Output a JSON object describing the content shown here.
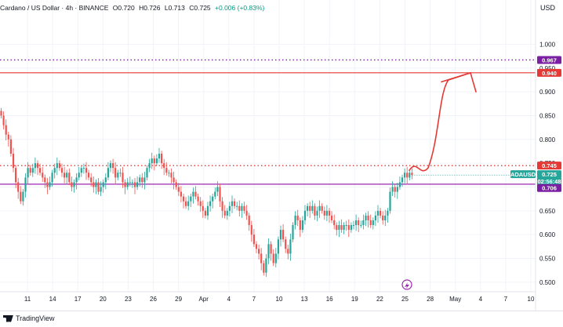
{
  "header": {
    "symbol": "Cardano / US Dollar · 4h · BINANCE",
    "o": "O0.720",
    "h": "H0.726",
    "l": "L0.713",
    "c": "C0.725",
    "change": "+0.006 (+0.83%)"
  },
  "currency": "USD",
  "price_axis": {
    "ticks": [
      "1.000",
      "0.950",
      "0.900",
      "0.850",
      "0.800",
      "0.750",
      "0.700",
      "0.650",
      "0.600",
      "0.550",
      "0.500"
    ],
    "badges": [
      {
        "label": "0.967",
        "bg": "#7b1fa2",
        "color": "#ffffff"
      },
      {
        "label": "0.940",
        "bg": "#e53935",
        "color": "#ffffff"
      },
      {
        "label": "0.745",
        "bg": "#e53935",
        "color": "#ffffff"
      },
      {
        "label": "ADAUSD",
        "bg": "#26a69a",
        "color": "#ffffff"
      },
      {
        "label": "0.725",
        "bg": "#26a69a",
        "color": "#ffffff"
      },
      {
        "label": "02:56:48",
        "bg": "#26a69a",
        "color": "#ffffff"
      },
      {
        "label": "0.706",
        "bg": "#7b1fa2",
        "color": "#ffffff"
      }
    ]
  },
  "time_axis": {
    "labels": [
      "11",
      "14",
      "17",
      "20",
      "23",
      "26",
      "29",
      "Apr",
      "4",
      "7",
      "10",
      "13",
      "16",
      "19",
      "22",
      "25",
      "28",
      "May",
      "4",
      "7",
      "10"
    ]
  },
  "levels": [
    {
      "price": 0.967,
      "style": "dotted",
      "color": "#7b1fa2"
    },
    {
      "price": 0.94,
      "style": "solid",
      "color": "#e53935"
    },
    {
      "price": 0.745,
      "style": "dotted",
      "color": "#e53935"
    },
    {
      "price": 0.706,
      "style": "solid",
      "color": "#9c27b0"
    }
  ],
  "colors": {
    "up": "#26a69a",
    "down": "#ef5350",
    "grid": "#f0f3fa"
  },
  "footer": {
    "brand": "TradingView"
  },
  "chart_data": {
    "type": "candlestick",
    "symbol": "ADAUSD",
    "timeframe": "4h",
    "ylim": [
      0.48,
      1.06
    ],
    "closes": [
      0.85,
      0.83,
      0.81,
      0.8,
      0.77,
      0.74,
      0.71,
      0.69,
      0.67,
      0.69,
      0.72,
      0.74,
      0.73,
      0.74,
      0.75,
      0.74,
      0.73,
      0.72,
      0.71,
      0.7,
      0.71,
      0.73,
      0.74,
      0.75,
      0.74,
      0.73,
      0.72,
      0.73,
      0.71,
      0.7,
      0.71,
      0.72,
      0.73,
      0.74,
      0.74,
      0.73,
      0.72,
      0.71,
      0.7,
      0.71,
      0.69,
      0.7,
      0.71,
      0.72,
      0.74,
      0.75,
      0.74,
      0.72,
      0.73,
      0.73,
      0.71,
      0.7,
      0.71,
      0.71,
      0.71,
      0.7,
      0.71,
      0.72,
      0.71,
      0.72,
      0.74,
      0.75,
      0.76,
      0.75,
      0.76,
      0.77,
      0.75,
      0.74,
      0.73,
      0.73,
      0.72,
      0.71,
      0.7,
      0.69,
      0.68,
      0.67,
      0.66,
      0.67,
      0.68,
      0.69,
      0.68,
      0.67,
      0.66,
      0.65,
      0.64,
      0.66,
      0.67,
      0.68,
      0.69,
      0.7,
      0.67,
      0.65,
      0.64,
      0.65,
      0.66,
      0.67,
      0.66,
      0.66,
      0.65,
      0.66,
      0.65,
      0.64,
      0.62,
      0.6,
      0.58,
      0.57,
      0.56,
      0.54,
      0.52,
      0.55,
      0.58,
      0.56,
      0.54,
      0.56,
      0.59,
      0.61,
      0.59,
      0.57,
      0.56,
      0.59,
      0.62,
      0.64,
      0.63,
      0.61,
      0.63,
      0.65,
      0.66,
      0.65,
      0.66,
      0.64,
      0.65,
      0.66,
      0.65,
      0.64,
      0.65,
      0.64,
      0.63,
      0.62,
      0.61,
      0.62,
      0.61,
      0.62,
      0.62,
      0.61,
      0.62,
      0.62,
      0.63,
      0.62,
      0.62,
      0.63,
      0.64,
      0.63,
      0.62,
      0.63,
      0.64,
      0.65,
      0.64,
      0.63,
      0.64,
      0.65,
      0.69,
      0.7,
      0.69,
      0.7,
      0.71,
      0.72,
      0.73,
      0.72,
      0.73,
      0.725
    ],
    "projection": "curved arrow from 0.725 up to about 0.94"
  }
}
